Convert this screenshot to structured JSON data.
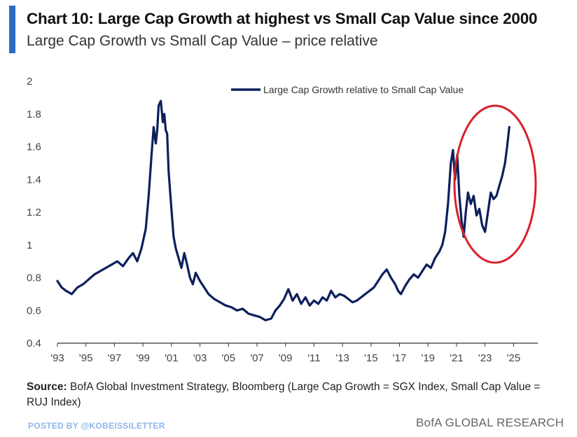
{
  "title": "Chart 10: Large Cap Growth at highest vs Small Cap Value since 2000",
  "subtitle": "Large Cap Growth vs Small Cap Value – price relative",
  "source_label": "Source:",
  "source_text": " BofA Global Investment Strategy, Bloomberg (Large Cap Growth = SGX Index, Small Cap Value = RUJ Index)",
  "watermark": "POSTED BY @KOBEISSILETTER",
  "brand": "BofA GLOBAL RESEARCH",
  "colors": {
    "series": "#0d1f5c",
    "highlight": "#d9202a",
    "accent": "#2b6cc4"
  },
  "chart_data": {
    "type": "line",
    "title": "Chart 10: Large Cap Growth at highest vs Small Cap Value since 2000",
    "subtitle": "Large Cap Growth vs Small Cap Value – price relative",
    "xlabel": "",
    "ylabel": "",
    "xlim": [
      1993,
      2026.7
    ],
    "ylim": [
      0.4,
      2.0
    ],
    "grid": false,
    "legend_position": "top-center",
    "y_ticks": [
      0.4,
      0.6,
      0.8,
      1,
      1.2,
      1.4,
      1.6,
      1.8,
      2
    ],
    "y_tick_labels": [
      "0.4",
      "0.6",
      "0.8",
      "1",
      "1.2",
      "1.4",
      "1.6",
      "1.8",
      "2"
    ],
    "x_ticks": [
      1993,
      1995,
      1997,
      1999,
      2001,
      2003,
      2005,
      2007,
      2009,
      2011,
      2013,
      2015,
      2017,
      2019,
      2021,
      2023,
      2025
    ],
    "x_tick_labels": [
      "'93",
      "'95",
      "'97",
      "'99",
      "'01",
      "'03",
      "'05",
      "'07",
      "'09",
      "'11",
      "'13",
      "'15",
      "'17",
      "'19",
      "'21",
      "'23",
      "'25"
    ],
    "annotation": "red ellipse circling 2021–2024 rise",
    "series": [
      {
        "name": "Large Cap Growth relative to Small Cap Value",
        "x": [
          1993.0,
          1993.3,
          1993.6,
          1994.0,
          1994.4,
          1994.8,
          1995.2,
          1995.6,
          1996.0,
          1996.4,
          1996.8,
          1997.2,
          1997.6,
          1998.0,
          1998.3,
          1998.6,
          1998.9,
          1999.2,
          1999.4,
          1999.6,
          1999.75,
          1999.9,
          2000.0,
          2000.1,
          2000.25,
          2000.4,
          2000.5,
          2000.6,
          2000.7,
          2000.8,
          2001.0,
          2001.15,
          2001.3,
          2001.5,
          2001.7,
          2001.9,
          2002.1,
          2002.3,
          2002.5,
          2002.7,
          2003.0,
          2003.3,
          2003.6,
          2004.0,
          2004.4,
          2004.8,
          2005.2,
          2005.6,
          2006.0,
          2006.4,
          2006.8,
          2007.2,
          2007.6,
          2008.0,
          2008.3,
          2008.6,
          2008.9,
          2009.2,
          2009.5,
          2009.8,
          2010.1,
          2010.4,
          2010.7,
          2011.0,
          2011.3,
          2011.6,
          2011.9,
          2012.2,
          2012.5,
          2012.8,
          2013.1,
          2013.4,
          2013.7,
          2014.0,
          2014.3,
          2014.6,
          2014.9,
          2015.2,
          2015.5,
          2015.8,
          2016.1,
          2016.4,
          2016.7,
          2016.9,
          2017.1,
          2017.4,
          2017.7,
          2018.0,
          2018.3,
          2018.6,
          2018.9,
          2019.2,
          2019.5,
          2019.8,
          2020.0,
          2020.2,
          2020.4,
          2020.6,
          2020.75,
          2020.9,
          2021.05,
          2021.2,
          2021.35,
          2021.5,
          2021.65,
          2021.8,
          2022.0,
          2022.2,
          2022.4,
          2022.6,
          2022.8,
          2023.0,
          2023.2,
          2023.4,
          2023.6,
          2023.8,
          2024.0,
          2024.2,
          2024.4,
          2024.55,
          2024.7
        ],
        "values": [
          0.78,
          0.74,
          0.72,
          0.7,
          0.74,
          0.76,
          0.79,
          0.82,
          0.84,
          0.86,
          0.88,
          0.9,
          0.87,
          0.92,
          0.95,
          0.9,
          0.98,
          1.1,
          1.3,
          1.55,
          1.72,
          1.62,
          1.7,
          1.85,
          1.88,
          1.75,
          1.8,
          1.7,
          1.68,
          1.45,
          1.22,
          1.05,
          0.98,
          0.92,
          0.86,
          0.95,
          0.88,
          0.8,
          0.76,
          0.83,
          0.78,
          0.74,
          0.7,
          0.67,
          0.65,
          0.63,
          0.62,
          0.6,
          0.61,
          0.58,
          0.57,
          0.56,
          0.54,
          0.55,
          0.6,
          0.63,
          0.67,
          0.73,
          0.66,
          0.7,
          0.64,
          0.68,
          0.63,
          0.66,
          0.64,
          0.68,
          0.66,
          0.72,
          0.68,
          0.7,
          0.69,
          0.67,
          0.65,
          0.66,
          0.68,
          0.7,
          0.72,
          0.74,
          0.78,
          0.82,
          0.85,
          0.8,
          0.76,
          0.72,
          0.7,
          0.75,
          0.79,
          0.82,
          0.8,
          0.84,
          0.88,
          0.86,
          0.92,
          0.96,
          1.0,
          1.08,
          1.25,
          1.5,
          1.58,
          1.4,
          1.55,
          1.3,
          1.15,
          1.05,
          1.2,
          1.32,
          1.25,
          1.3,
          1.18,
          1.22,
          1.12,
          1.08,
          1.2,
          1.32,
          1.28,
          1.3,
          1.36,
          1.42,
          1.5,
          1.6,
          1.72
        ]
      }
    ]
  }
}
